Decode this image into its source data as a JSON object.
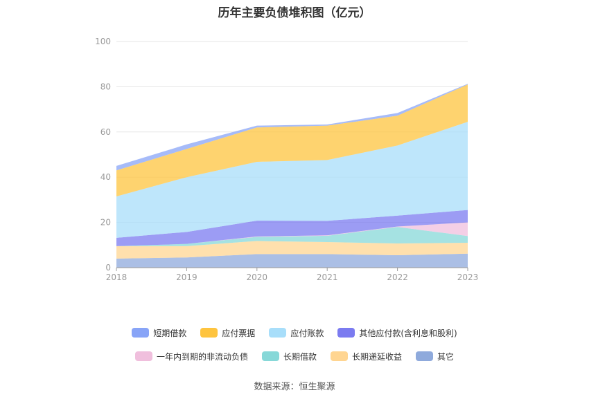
{
  "title": "历年主要负债堆积图（亿元）",
  "source": "数据来源：恒生聚源",
  "chart_data": {
    "type": "area",
    "stacked": true,
    "x": [
      "2018",
      "2019",
      "2020",
      "2021",
      "2022",
      "2023"
    ],
    "ylim": [
      0,
      100
    ],
    "yticks": [
      0,
      20,
      40,
      60,
      80,
      100
    ],
    "grid": true,
    "legend_position": "bottom",
    "series": [
      {
        "name": "其它",
        "color": "#8faadc",
        "values": [
          4.0,
          4.5,
          6.0,
          6.0,
          5.5,
          6.2
        ]
      },
      {
        "name": "长期递延收益",
        "color": "#ffd591",
        "values": [
          5.5,
          5.0,
          5.8,
          5.3,
          5.2,
          4.8
        ]
      },
      {
        "name": "长期借款",
        "color": "#87d8d8",
        "values": [
          0.0,
          1.0,
          1.8,
          2.8,
          7.3,
          3.0
        ]
      },
      {
        "name": "一年内到期的非流动负债",
        "color": "#f0bfdd",
        "values": [
          0.0,
          0.0,
          0.2,
          0.2,
          0.2,
          6.0
        ]
      },
      {
        "name": "其他应付款(含利息和股利)",
        "color": "#7b7bf0",
        "values": [
          3.7,
          5.3,
          7.0,
          6.4,
          4.8,
          5.5
        ]
      },
      {
        "name": "应付账款",
        "color": "#a8defa",
        "values": [
          18.3,
          24.2,
          26.0,
          26.9,
          31.0,
          39.0
        ]
      },
      {
        "name": "应付票据",
        "color": "#fec43f",
        "values": [
          11.5,
          12.5,
          15.2,
          15.2,
          13.2,
          16.5
        ]
      },
      {
        "name": "短期借款",
        "color": "#88a4f7",
        "values": [
          2.0,
          2.0,
          0.8,
          0.5,
          1.2,
          0.3
        ]
      }
    ]
  },
  "legend_rows": [
    [
      "短期借款",
      "应付票据",
      "应付账款",
      "其他应付款(含利息和股利)"
    ],
    [
      "一年内到期的非流动负债",
      "长期借款",
      "长期递延收益",
      "其它"
    ]
  ]
}
